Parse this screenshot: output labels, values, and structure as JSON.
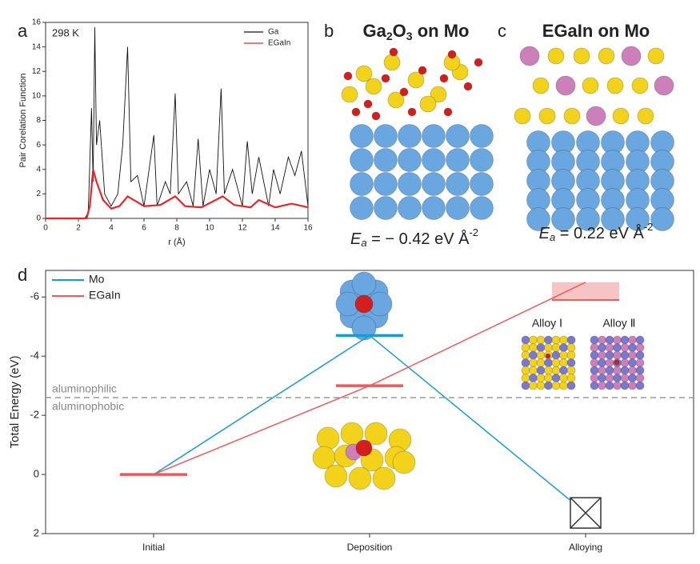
{
  "chart_data": [
    {
      "type": "line",
      "label": "a",
      "annotation": "298 K",
      "xlabel": "r (Å)",
      "ylabel": "Pair Corelation Function",
      "xlim": [
        0,
        16
      ],
      "xticks": [
        0,
        2,
        4,
        6,
        8,
        10,
        12,
        14,
        16
      ],
      "ylim": [
        0,
        16
      ],
      "yticks": [
        0,
        2,
        4,
        6,
        8,
        10,
        12,
        14,
        16
      ],
      "legend": "upper right",
      "series": [
        {
          "name": "Ga",
          "color": "#111111",
          "x": [
            0,
            2.4,
            2.6,
            2.8,
            2.9,
            3.0,
            3.1,
            3.3,
            3.6,
            4.0,
            4.4,
            4.7,
            5.0,
            5.2,
            5.6,
            6.0,
            6.6,
            6.8,
            7.3,
            7.6,
            7.9,
            8.1,
            8.6,
            9.0,
            9.3,
            9.6,
            10.0,
            10.4,
            10.7,
            10.9,
            11.4,
            12.0,
            12.3,
            12.6,
            13.0,
            13.6,
            13.9,
            14.3,
            14.8,
            15.2,
            15.6,
            16.0
          ],
          "values": [
            0,
            0,
            0.5,
            9,
            3,
            15.6,
            6,
            8,
            2,
            1,
            2,
            6,
            14,
            3,
            3.5,
            1,
            6.8,
            1,
            3,
            2,
            10.2,
            2,
            3,
            1,
            6.5,
            1,
            4,
            2,
            10.6,
            2,
            4,
            1,
            6.3,
            2,
            5,
            1,
            4,
            2,
            5,
            3.5,
            5.5,
            1
          ]
        },
        {
          "name": "EGaIn",
          "color": "#e8262a",
          "x": [
            0,
            2.5,
            2.7,
            2.9,
            3.1,
            3.5,
            4.0,
            4.5,
            5.0,
            5.5,
            6.0,
            7.0,
            7.9,
            8.5,
            9.5,
            10.8,
            11.5,
            12.5,
            13.0,
            14.0,
            15.0,
            16.0
          ],
          "values": [
            0,
            0,
            1,
            4,
            3,
            1.5,
            0.8,
            1.0,
            1.8,
            1.4,
            1.0,
            1.1,
            1.8,
            1.0,
            0.9,
            1.8,
            1.1,
            0.9,
            1.5,
            0.9,
            1.2,
            0.9
          ]
        }
      ]
    },
    {
      "type": "energy",
      "label": "d",
      "ylabel": "Total Energy (eV)",
      "categories": [
        "Initial",
        "Deposition",
        "Alloying"
      ],
      "ylim": [
        2,
        -6.9
      ],
      "yticks": [
        2,
        0,
        -2,
        -4,
        -6
      ],
      "legend": "upper left",
      "threshold": -2.6,
      "threshold_labels": [
        "aluminophilic",
        "aluminophobic"
      ],
      "alloy_labels": [
        "Alloy Ⅰ",
        "Alloy Ⅱ"
      ],
      "alloy_band": [
        -6.5,
        -5.9
      ],
      "series": [
        {
          "name": "Mo",
          "color": "#1a9bd7",
          "values": [
            0,
            -4.7,
            1.3
          ]
        },
        {
          "name": "EGaIn",
          "color": "#ee5a5a",
          "values": [
            0,
            -3.0,
            -6.5
          ]
        }
      ]
    }
  ],
  "panels": {
    "b": {
      "label": "b",
      "title_parts": [
        "Ga",
        "2",
        "O",
        "3",
        " on Mo"
      ],
      "energy_parts": [
        "E",
        "a",
        " = − 0.42 eV Å",
        "-2"
      ]
    },
    "c": {
      "label": "c",
      "title": "EGaIn on Mo",
      "energy_parts": [
        "E",
        "a",
        " = 0.22 eV Å",
        "-2"
      ]
    }
  }
}
